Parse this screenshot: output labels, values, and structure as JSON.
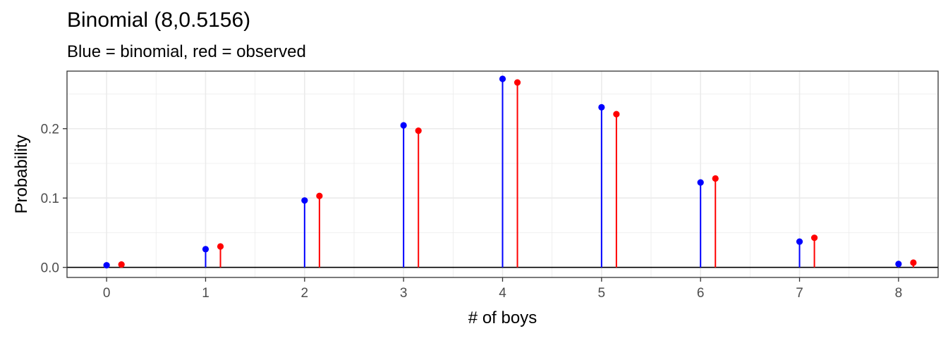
{
  "title": "Binomial (8,0.5156)",
  "subtitle": "Blue = binomial, red = observed",
  "colors": {
    "binomial": "#0000ff",
    "observed": "#ff0000",
    "grid": "#ebebeb",
    "axis": "#333333"
  },
  "chart_data": {
    "type": "lollipop",
    "title": "Binomial (8,0.5156)",
    "subtitle": "Blue = binomial, red = observed",
    "xlabel": "# of boys",
    "ylabel": "Probability",
    "x": [
      0,
      1,
      2,
      3,
      4,
      5,
      6,
      7,
      8
    ],
    "x_ticks": [
      "0",
      "1",
      "2",
      "3",
      "4",
      "5",
      "6",
      "7",
      "8"
    ],
    "y_ticks": [
      "0.0",
      "0.1",
      "0.2"
    ],
    "xlim": [
      -0.4,
      8.4
    ],
    "ylim": [
      -0.0145,
      0.283
    ],
    "grid": true,
    "series": [
      {
        "name": "binomial",
        "color": "#0000ff",
        "values": [
          0.0031,
          0.0263,
          0.0965,
          0.2048,
          0.2718,
          0.2308,
          0.1225,
          0.0372,
          0.0049
        ]
      },
      {
        "name": "observed",
        "color": "#ff0000",
        "x_offset": 0.15,
        "values": [
          0.0042,
          0.0302,
          0.103,
          0.1971,
          0.2666,
          0.2209,
          0.1282,
          0.0427,
          0.0068
        ]
      }
    ]
  }
}
